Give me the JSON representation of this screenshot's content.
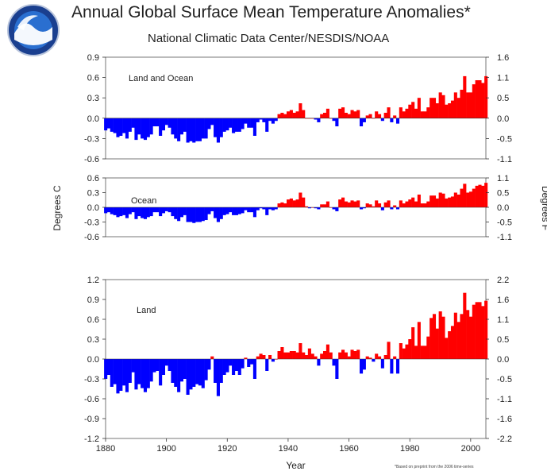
{
  "header": {
    "title": "Annual Global Surface Mean Temperature Anomalies*",
    "subtitle": "National Climatic Data Center/NESDIS/NOAA",
    "logo_text": "NOAA",
    "footnote": "*Based on preprint from the 2006 time-series"
  },
  "chart_data": [
    {
      "type": "bar",
      "title": "Land and Ocean",
      "xlabel": "Year",
      "ylabel": "Degrees C",
      "ylabel_right": "Degrees F",
      "ylim": [
        -0.6,
        0.9
      ],
      "yticks_left": [
        "0.9",
        "0.6",
        "0.3",
        "0.0",
        "-0.3",
        "-0.6"
      ],
      "yticks_right": [
        "1.6",
        "1.1",
        "0.5",
        "0.0",
        "-0.5",
        "-1.1"
      ],
      "colors": {
        "positive": "#ff0000",
        "negative": "#0000ff"
      },
      "x": [
        1880,
        1881,
        1882,
        1883,
        1884,
        1885,
        1886,
        1887,
        1888,
        1889,
        1890,
        1891,
        1892,
        1893,
        1894,
        1895,
        1896,
        1897,
        1898,
        1899,
        1900,
        1901,
        1902,
        1903,
        1904,
        1905,
        1906,
        1907,
        1908,
        1909,
        1910,
        1911,
        1912,
        1913,
        1914,
        1915,
        1916,
        1917,
        1918,
        1919,
        1920,
        1921,
        1922,
        1923,
        1924,
        1925,
        1926,
        1927,
        1928,
        1929,
        1930,
        1931,
        1932,
        1933,
        1934,
        1935,
        1936,
        1937,
        1938,
        1939,
        1940,
        1941,
        1942,
        1943,
        1944,
        1945,
        1946,
        1947,
        1948,
        1949,
        1950,
        1951,
        1952,
        1953,
        1954,
        1955,
        1956,
        1957,
        1958,
        1959,
        1960,
        1961,
        1962,
        1963,
        1964,
        1965,
        1966,
        1967,
        1968,
        1969,
        1970,
        1971,
        1972,
        1973,
        1974,
        1975,
        1976,
        1977,
        1978,
        1979,
        1980,
        1981,
        1982,
        1983,
        1984,
        1985,
        1986,
        1987,
        1988,
        1989,
        1990,
        1991,
        1992,
        1993,
        1994,
        1995,
        1996,
        1997,
        1998,
        1999,
        2000,
        2001,
        2002,
        2003,
        2004,
        2005
      ],
      "values": [
        -0.18,
        -0.15,
        -0.2,
        -0.22,
        -0.28,
        -0.26,
        -0.22,
        -0.3,
        -0.2,
        -0.14,
        -0.32,
        -0.24,
        -0.3,
        -0.32,
        -0.28,
        -0.24,
        -0.12,
        -0.12,
        -0.26,
        -0.18,
        -0.1,
        -0.14,
        -0.24,
        -0.3,
        -0.34,
        -0.24,
        -0.2,
        -0.36,
        -0.34,
        -0.36,
        -0.34,
        -0.34,
        -0.3,
        -0.3,
        -0.16,
        -0.1,
        -0.28,
        -0.36,
        -0.28,
        -0.2,
        -0.18,
        -0.14,
        -0.22,
        -0.2,
        -0.2,
        -0.16,
        -0.08,
        -0.14,
        -0.14,
        -0.26,
        -0.06,
        -0.02,
        -0.06,
        -0.2,
        -0.04,
        -0.08,
        -0.04,
        0.06,
        0.08,
        0.06,
        0.1,
        0.12,
        0.08,
        0.1,
        0.22,
        0.12,
        0.0,
        0.0,
        0.0,
        -0.02,
        -0.06,
        0.06,
        0.08,
        0.14,
        0.0,
        -0.04,
        -0.12,
        0.14,
        0.16,
        0.08,
        0.06,
        0.12,
        0.1,
        0.12,
        -0.12,
        -0.06,
        0.04,
        0.06,
        0.0,
        0.1,
        0.06,
        -0.04,
        0.08,
        0.16,
        -0.06,
        0.04,
        -0.08,
        0.16,
        0.1,
        0.14,
        0.2,
        0.24,
        0.14,
        0.3,
        0.1,
        0.1,
        0.16,
        0.3,
        0.3,
        0.22,
        0.38,
        0.34,
        0.2,
        0.22,
        0.26,
        0.38,
        0.3,
        0.42,
        0.62,
        0.38,
        0.38,
        0.5,
        0.56,
        0.56,
        0.52,
        0.62
      ]
    },
    {
      "type": "bar",
      "title": "Ocean",
      "ylim": [
        -0.6,
        0.6
      ],
      "yticks_left": [
        "0.6",
        "0.3",
        "0.0",
        "-0.3",
        "-0.6"
      ],
      "yticks_right": [
        "1.1",
        "0.5",
        "0.0",
        "-0.5",
        "-1.1"
      ],
      "colors": {
        "positive": "#ff0000",
        "negative": "#0000ff"
      },
      "x": [
        1880,
        1881,
        1882,
        1883,
        1884,
        1885,
        1886,
        1887,
        1888,
        1889,
        1890,
        1891,
        1892,
        1893,
        1894,
        1895,
        1896,
        1897,
        1898,
        1899,
        1900,
        1901,
        1902,
        1903,
        1904,
        1905,
        1906,
        1907,
        1908,
        1909,
        1910,
        1911,
        1912,
        1913,
        1914,
        1915,
        1916,
        1917,
        1918,
        1919,
        1920,
        1921,
        1922,
        1923,
        1924,
        1925,
        1926,
        1927,
        1928,
        1929,
        1930,
        1931,
        1932,
        1933,
        1934,
        1935,
        1936,
        1937,
        1938,
        1939,
        1940,
        1941,
        1942,
        1943,
        1944,
        1945,
        1946,
        1947,
        1948,
        1949,
        1950,
        1951,
        1952,
        1953,
        1954,
        1955,
        1956,
        1957,
        1958,
        1959,
        1960,
        1961,
        1962,
        1963,
        1964,
        1965,
        1966,
        1967,
        1968,
        1969,
        1970,
        1971,
        1972,
        1973,
        1974,
        1975,
        1976,
        1977,
        1978,
        1979,
        1980,
        1981,
        1982,
        1983,
        1984,
        1985,
        1986,
        1987,
        1988,
        1989,
        1990,
        1991,
        1992,
        1993,
        1994,
        1995,
        1996,
        1997,
        1998,
        1999,
        2000,
        2001,
        2002,
        2003,
        2004,
        2005
      ],
      "values": [
        -0.12,
        -0.1,
        -0.14,
        -0.16,
        -0.2,
        -0.18,
        -0.16,
        -0.22,
        -0.14,
        -0.1,
        -0.24,
        -0.18,
        -0.22,
        -0.24,
        -0.2,
        -0.18,
        -0.1,
        -0.1,
        -0.18,
        -0.12,
        -0.08,
        -0.1,
        -0.18,
        -0.24,
        -0.28,
        -0.2,
        -0.16,
        -0.3,
        -0.3,
        -0.32,
        -0.3,
        -0.3,
        -0.28,
        -0.26,
        -0.14,
        -0.08,
        -0.22,
        -0.3,
        -0.24,
        -0.16,
        -0.14,
        -0.1,
        -0.16,
        -0.16,
        -0.14,
        -0.12,
        -0.06,
        -0.1,
        -0.1,
        -0.2,
        -0.06,
        -0.02,
        -0.04,
        -0.16,
        -0.04,
        -0.06,
        -0.04,
        0.08,
        0.1,
        0.08,
        0.16,
        0.18,
        0.14,
        0.16,
        0.3,
        0.2,
        0.02,
        -0.02,
        0.0,
        -0.02,
        -0.04,
        0.06,
        0.06,
        0.12,
        0.0,
        -0.04,
        -0.08,
        0.16,
        0.2,
        0.12,
        0.1,
        0.14,
        0.12,
        0.14,
        -0.04,
        -0.02,
        0.08,
        0.06,
        0.02,
        0.14,
        0.08,
        -0.06,
        0.1,
        0.14,
        -0.04,
        0.04,
        -0.04,
        0.14,
        0.08,
        0.12,
        0.16,
        0.2,
        0.12,
        0.26,
        0.08,
        0.08,
        0.12,
        0.24,
        0.24,
        0.18,
        0.3,
        0.28,
        0.18,
        0.2,
        0.22,
        0.3,
        0.26,
        0.38,
        0.48,
        0.3,
        0.32,
        0.38,
        0.44,
        0.46,
        0.44,
        0.5
      ]
    },
    {
      "type": "bar",
      "title": "Land",
      "ylim": [
        -1.2,
        1.2
      ],
      "yticks_left": [
        "1.2",
        "0.9",
        "0.6",
        "0.3",
        "0.0",
        "-0.3",
        "-0.6",
        "-0.9",
        "-1.2"
      ],
      "yticks_right": [
        "2.2",
        "1.6",
        "1.1",
        "0.5",
        "0.0",
        "-0.5",
        "-1.1",
        "-1.6",
        "-2.2"
      ],
      "xticks": [
        "1880",
        "1900",
        "1920",
        "1940",
        "1960",
        "1980",
        "2000"
      ],
      "colors": {
        "positive": "#ff0000",
        "negative": "#0000ff"
      },
      "x": [
        1880,
        1881,
        1882,
        1883,
        1884,
        1885,
        1886,
        1887,
        1888,
        1889,
        1890,
        1891,
        1892,
        1893,
        1894,
        1895,
        1896,
        1897,
        1898,
        1899,
        1900,
        1901,
        1902,
        1903,
        1904,
        1905,
        1906,
        1907,
        1908,
        1909,
        1910,
        1911,
        1912,
        1913,
        1914,
        1915,
        1916,
        1917,
        1918,
        1919,
        1920,
        1921,
        1922,
        1923,
        1924,
        1925,
        1926,
        1927,
        1928,
        1929,
        1930,
        1931,
        1932,
        1933,
        1934,
        1935,
        1936,
        1937,
        1938,
        1939,
        1940,
        1941,
        1942,
        1943,
        1944,
        1945,
        1946,
        1947,
        1948,
        1949,
        1950,
        1951,
        1952,
        1953,
        1954,
        1955,
        1956,
        1957,
        1958,
        1959,
        1960,
        1961,
        1962,
        1963,
        1964,
        1965,
        1966,
        1967,
        1968,
        1969,
        1970,
        1971,
        1972,
        1973,
        1974,
        1975,
        1976,
        1977,
        1978,
        1979,
        1980,
        1981,
        1982,
        1983,
        1984,
        1985,
        1986,
        1987,
        1988,
        1989,
        1990,
        1991,
        1992,
        1993,
        1994,
        1995,
        1996,
        1997,
        1998,
        1999,
        2000,
        2001,
        2002,
        2003,
        2004,
        2005
      ],
      "values": [
        -0.3,
        -0.24,
        -0.42,
        -0.38,
        -0.52,
        -0.48,
        -0.4,
        -0.5,
        -0.36,
        -0.2,
        -0.46,
        -0.38,
        -0.44,
        -0.5,
        -0.44,
        -0.34,
        -0.2,
        -0.18,
        -0.4,
        -0.24,
        -0.1,
        -0.18,
        -0.36,
        -0.42,
        -0.5,
        -0.34,
        -0.3,
        -0.54,
        -0.46,
        -0.42,
        -0.38,
        -0.4,
        -0.44,
        -0.32,
        -0.16,
        0.04,
        -0.36,
        -0.56,
        -0.36,
        -0.24,
        -0.2,
        -0.1,
        -0.24,
        -0.18,
        -0.24,
        -0.14,
        0.02,
        -0.12,
        -0.08,
        -0.3,
        0.04,
        0.08,
        0.06,
        -0.18,
        0.06,
        -0.04,
        0.0,
        0.12,
        0.18,
        0.1,
        0.1,
        0.12,
        0.12,
        0.1,
        0.24,
        0.1,
        0.06,
        0.16,
        0.08,
        0.04,
        -0.1,
        0.08,
        0.12,
        0.22,
        0.1,
        -0.1,
        -0.3,
        0.1,
        0.14,
        0.1,
        0.04,
        0.14,
        0.12,
        0.14,
        -0.22,
        -0.16,
        0.04,
        0.02,
        -0.04,
        0.08,
        0.04,
        -0.14,
        0.06,
        0.26,
        -0.22,
        0.04,
        -0.22,
        0.24,
        0.16,
        0.22,
        0.3,
        0.48,
        0.2,
        0.56,
        0.2,
        0.2,
        0.34,
        0.62,
        0.68,
        0.46,
        0.72,
        0.64,
        0.32,
        0.42,
        0.5,
        0.7,
        0.56,
        0.68,
        1.0,
        0.74,
        0.64,
        0.82,
        0.86,
        0.86,
        0.8,
        0.88
      ]
    }
  ]
}
